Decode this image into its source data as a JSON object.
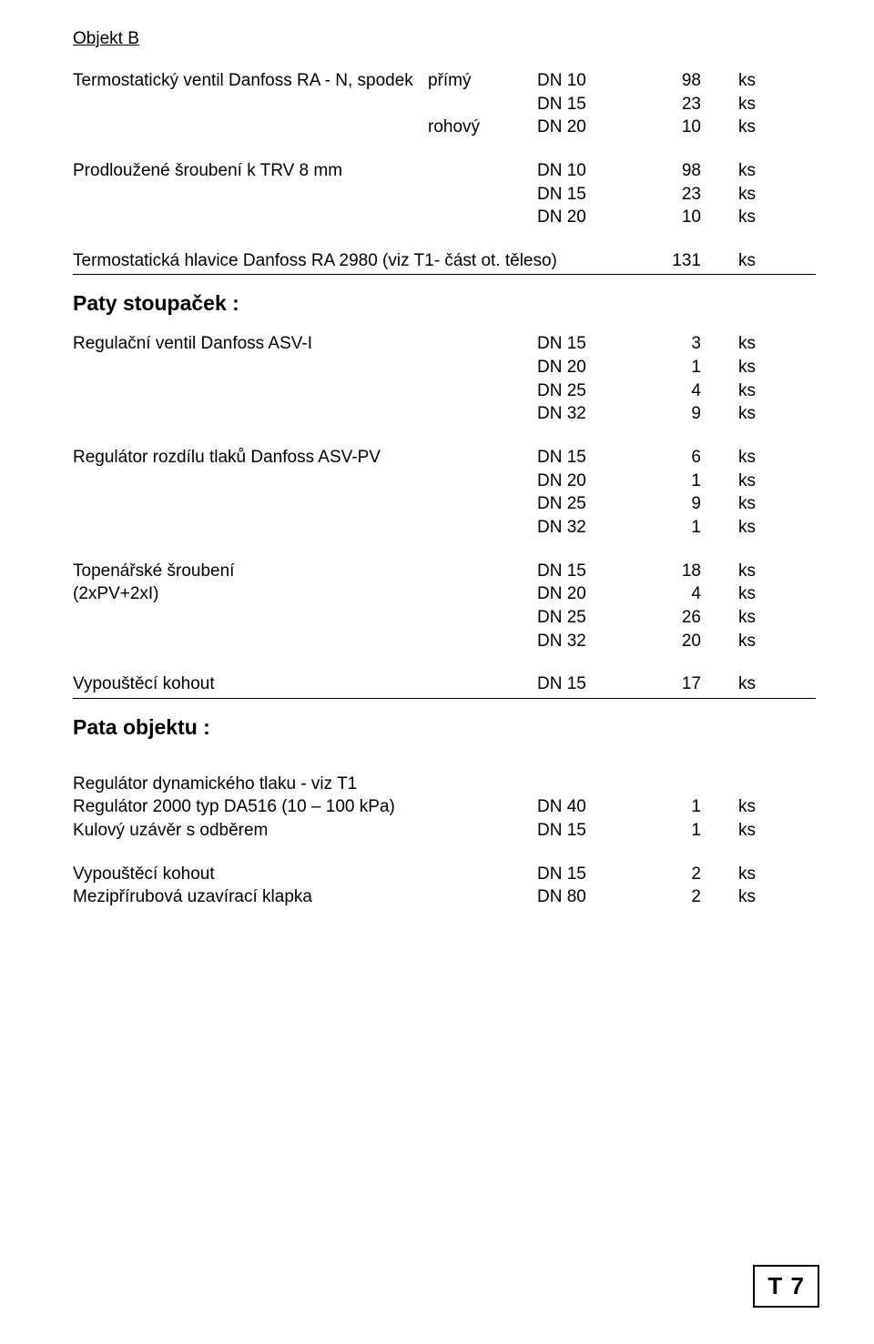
{
  "section_title": "Objekt B",
  "block_termostat": {
    "label": "Termostatický ventil Danfoss RA - N, spodek",
    "lines": [
      {
        "mid": "přímý",
        "dn": "DN 10",
        "qty": "98",
        "unit": "ks"
      },
      {
        "mid": "",
        "dn": "DN 15",
        "qty": "23",
        "unit": "ks"
      },
      {
        "mid": "rohový",
        "dn": "DN 20",
        "qty": "10",
        "unit": "ks"
      }
    ]
  },
  "block_sroubeni": {
    "label": "Prodloužené šroubení k TRV 8 mm",
    "lines": [
      {
        "mid": "",
        "dn": "DN 10",
        "qty": "98",
        "unit": "ks"
      },
      {
        "mid": "",
        "dn": "DN 15",
        "qty": "23",
        "unit": "ks"
      },
      {
        "mid": "",
        "dn": "DN 20",
        "qty": "10",
        "unit": "ks"
      }
    ]
  },
  "block_hlavice": {
    "label": "Termostatická hlavice Danfoss RA 2980 (viz T1- část ot. těleso)",
    "qty": "131",
    "unit": "ks"
  },
  "heading_paty": "Paty stoupaček :",
  "block_asvi": {
    "label": "Regulační ventil Danfoss ASV-I",
    "lines": [
      {
        "dn": "DN 15",
        "qty": "3",
        "unit": "ks"
      },
      {
        "dn": "DN 20",
        "qty": "1",
        "unit": "ks"
      },
      {
        "dn": "DN 25",
        "qty": "4",
        "unit": "ks"
      },
      {
        "dn": "DN 32",
        "qty": "9",
        "unit": "ks"
      }
    ]
  },
  "block_asvpv": {
    "label": "Regulátor rozdílu tlaků Danfoss ASV-PV",
    "lines": [
      {
        "dn": "DN 15",
        "qty": "6",
        "unit": "ks"
      },
      {
        "dn": "DN 20",
        "qty": "1",
        "unit": "ks"
      },
      {
        "dn": "DN 25",
        "qty": "9",
        "unit": "ks"
      },
      {
        "dn": "DN 32",
        "qty": "1",
        "unit": "ks"
      }
    ]
  },
  "block_topenar": {
    "label": "Topenářské šroubení",
    "label2": "(2xPV+2xI)",
    "lines": [
      {
        "dn": "DN 15",
        "qty": "18",
        "unit": "ks"
      },
      {
        "dn": "DN 20",
        "qty": "4",
        "unit": "ks"
      },
      {
        "dn": "DN 25",
        "qty": "26",
        "unit": "ks"
      },
      {
        "dn": "DN 32",
        "qty": "20",
        "unit": "ks"
      }
    ]
  },
  "block_vypoust1": {
    "label": "Vypouštěcí kohout",
    "dn": "DN 15",
    "qty": "17",
    "unit": "ks"
  },
  "heading_pata": "Pata objektu :",
  "block_regdyn": {
    "label_info": "Regulátor dynamického tlaku  - viz T1",
    "label_reg": "Regulátor 2000 typ DA516 (10 – 100 kPa)",
    "reg": {
      "dn": "DN 40",
      "qty": "1",
      "unit": "ks"
    },
    "label_kul": "Kulový uzávěr s odběrem",
    "kul": {
      "dn": "DN 15",
      "qty": "1",
      "unit": "ks"
    }
  },
  "block_vypoust2": {
    "label": "Vypouštěcí kohout",
    "dn": "DN 15",
    "qty": "2",
    "unit": "ks"
  },
  "block_mezi": {
    "label": "Mezipřírubová uzavírací klapka",
    "dn": "DN 80",
    "qty": "2",
    "unit": "ks"
  },
  "footer": "T 7"
}
